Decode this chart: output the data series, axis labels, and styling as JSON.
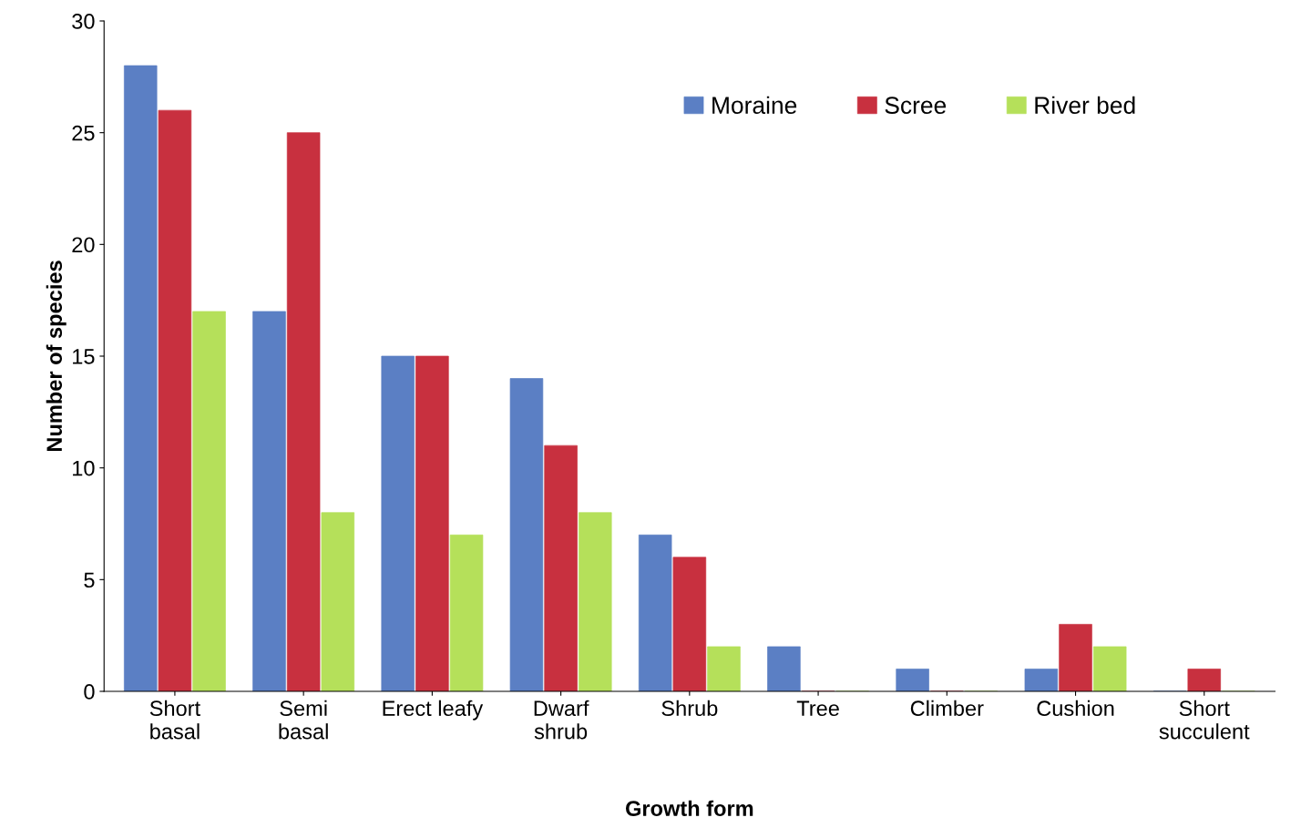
{
  "chart_data": {
    "type": "bar",
    "xlabel": "Growth form",
    "ylabel": "Number of species",
    "categories": [
      "Short\nbasal",
      "Semi\nbasal",
      "Erect leafy",
      "Dwarf\nshrub",
      "Shrub",
      "Tree",
      "Climber",
      "Cushion",
      "Short\nsucculent"
    ],
    "series": [
      {
        "name": "Moraine",
        "color": "#5b7fc4",
        "values": [
          28,
          17,
          15,
          14,
          7,
          2,
          1,
          1,
          0
        ]
      },
      {
        "name": "Scree",
        "color": "#c8303f",
        "values": [
          26,
          25,
          15,
          11,
          6,
          0,
          0,
          3,
          1
        ]
      },
      {
        "name": "River bed",
        "color": "#b5e05a",
        "values": [
          17,
          8,
          7,
          8,
          2,
          0,
          0,
          2,
          0
        ]
      }
    ],
    "ylim": [
      0,
      30
    ],
    "yticks": [
      0,
      5,
      10,
      15,
      20,
      25,
      30
    ],
    "grid": false,
    "legend": "top right"
  }
}
